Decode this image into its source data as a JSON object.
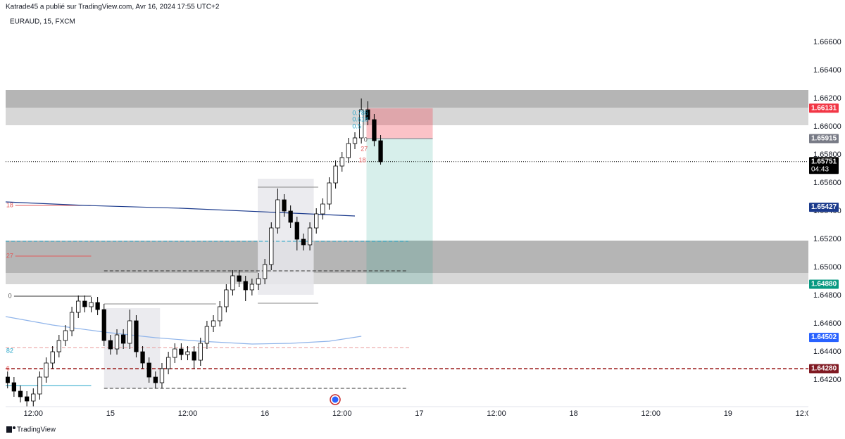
{
  "chart_data": {
    "type": "candlestick",
    "header": "Katrade45 a publié sur TradingView.com, Avr 16, 2024 17:55 UTC+2",
    "title": "EURAUD, 15, FXCM",
    "footer": "TradingView",
    "xlim": [
      7.7,
      132.5
    ],
    "xticks": [
      {
        "value": 12,
        "label": "12:00"
      },
      {
        "value": 24,
        "label": "15"
      },
      {
        "value": 36,
        "label": "12:00"
      },
      {
        "value": 48,
        "label": "16"
      },
      {
        "value": 60,
        "label": "12:00"
      },
      {
        "value": 72,
        "label": "17"
      },
      {
        "value": 84,
        "label": "12:00"
      },
      {
        "value": 96,
        "label": "18"
      },
      {
        "value": 108,
        "label": "12:00"
      },
      {
        "value": 120,
        "label": "19"
      },
      {
        "value": 132,
        "label": "12:00"
      }
    ],
    "ylim": [
      1.6401,
      1.6681
    ],
    "yticks": [
      {
        "value": 1.666,
        "label": "1.66600"
      },
      {
        "value": 1.664,
        "label": "1.66400"
      },
      {
        "value": 1.662,
        "label": "1.66200"
      },
      {
        "value": 1.66,
        "label": "1.66000"
      },
      {
        "value": 1.658,
        "label": "1.65800"
      },
      {
        "value": 1.656,
        "label": "1.65600"
      },
      {
        "value": 1.654,
        "label": "1.65400"
      },
      {
        "value": 1.652,
        "label": "1.65200"
      },
      {
        "value": 1.65,
        "label": "1.65000"
      },
      {
        "value": 1.648,
        "label": "1.64800"
      },
      {
        "value": 1.646,
        "label": "1.64600"
      },
      {
        "value": 1.644,
        "label": "1.64400"
      },
      {
        "value": 1.642,
        "label": "1.64200"
      }
    ],
    "up_color": "#ffffff",
    "down_color": "#000000",
    "x": [
      8,
      9,
      10,
      11,
      12,
      13,
      14,
      15,
      16,
      17,
      18,
      19,
      20,
      21,
      22,
      23,
      24,
      25,
      26,
      27,
      28,
      29,
      30,
      31,
      32,
      33,
      34,
      35,
      36,
      37,
      38,
      39,
      40,
      41,
      42,
      43,
      44,
      45,
      46,
      47,
      48,
      49,
      50,
      51,
      52,
      53,
      54,
      55,
      56,
      57,
      58,
      59,
      60,
      61,
      62,
      63,
      64,
      65,
      66
    ],
    "open": [
      1.6422,
      1.6418,
      1.6412,
      1.6408,
      1.6405,
      1.641,
      1.6422,
      1.6432,
      1.644,
      1.6448,
      1.6455,
      1.6468,
      1.6476,
      1.6472,
      1.6475,
      1.647,
      1.6448,
      1.6442,
      1.6452,
      1.6446,
      1.6462,
      1.644,
      1.6432,
      1.6422,
      1.6418,
      1.6428,
      1.6436,
      1.6442,
      1.6438,
      1.644,
      1.6434,
      1.6446,
      1.6458,
      1.6462,
      1.6472,
      1.6484,
      1.6494,
      1.649,
      1.6484,
      1.6488,
      1.6492,
      1.6502,
      1.6528,
      1.6548,
      1.654,
      1.6532,
      1.652,
      1.6516,
      1.6528,
      1.6538,
      1.6545,
      1.656,
      1.6572,
      1.6578,
      1.6588,
      1.6592,
      1.6612,
      1.6605,
      1.659
    ],
    "high": [
      1.6426,
      1.6422,
      1.6416,
      1.6412,
      1.6414,
      1.6426,
      1.6436,
      1.6444,
      1.6452,
      1.6459,
      1.6472,
      1.648,
      1.648,
      1.6479,
      1.6479,
      1.6474,
      1.6452,
      1.6456,
      1.6456,
      1.647,
      1.6466,
      1.6444,
      1.6436,
      1.6426,
      1.6432,
      1.644,
      1.6446,
      1.6446,
      1.6444,
      1.6444,
      1.645,
      1.6462,
      1.6466,
      1.6476,
      1.6488,
      1.6498,
      1.6498,
      1.6494,
      1.6492,
      1.6496,
      1.6506,
      1.6532,
      1.6556,
      1.6552,
      1.6544,
      1.6536,
      1.6524,
      1.6532,
      1.6542,
      1.6549,
      1.6564,
      1.6576,
      1.6582,
      1.6592,
      1.6596,
      1.662,
      1.6618,
      1.6609,
      1.6594
    ],
    "low": [
      1.6414,
      1.6408,
      1.6404,
      1.6401,
      1.6401,
      1.6406,
      1.6418,
      1.6428,
      1.6436,
      1.6444,
      1.6451,
      1.6464,
      1.6468,
      1.6468,
      1.6466,
      1.6444,
      1.6438,
      1.6438,
      1.6442,
      1.6442,
      1.6436,
      1.6428,
      1.6418,
      1.6414,
      1.6414,
      1.6424,
      1.6432,
      1.6434,
      1.6434,
      1.6428,
      1.643,
      1.6442,
      1.6454,
      1.6458,
      1.6468,
      1.648,
      1.6486,
      1.6476,
      1.648,
      1.6484,
      1.6488,
      1.6498,
      1.6524,
      1.6536,
      1.6528,
      1.6512,
      1.6512,
      1.6512,
      1.6524,
      1.6534,
      1.6541,
      1.6556,
      1.6568,
      1.6574,
      1.6584,
      1.6588,
      1.6601,
      1.6586,
      1.6573
    ],
    "close": [
      1.6418,
      1.6412,
      1.6408,
      1.6405,
      1.641,
      1.6422,
      1.6432,
      1.644,
      1.6448,
      1.6455,
      1.6468,
      1.6476,
      1.6472,
      1.6475,
      1.647,
      1.6448,
      1.6442,
      1.6452,
      1.6446,
      1.6462,
      1.644,
      1.6432,
      1.6422,
      1.6418,
      1.6428,
      1.6436,
      1.6442,
      1.6438,
      1.644,
      1.6434,
      1.6446,
      1.6458,
      1.6462,
      1.6472,
      1.6484,
      1.6494,
      1.649,
      1.6484,
      1.6488,
      1.6492,
      1.6502,
      1.6528,
      1.6548,
      1.654,
      1.6532,
      1.652,
      1.6516,
      1.6528,
      1.6538,
      1.6545,
      1.656,
      1.6572,
      1.6578,
      1.6588,
      1.6592,
      1.6612,
      1.6605,
      1.659,
      1.6575
    ],
    "zones": [
      {
        "top": 1.6626,
        "bottom": 1.66135,
        "color": "#b5b5b5"
      },
      {
        "top": 1.66135,
        "bottom": 1.6601,
        "color": "#d7d7d7"
      },
      {
        "top": 1.6519,
        "bottom": 1.6496,
        "color": "#b5b5b5"
      },
      {
        "top": 1.6496,
        "bottom": 1.6488,
        "color": "#d7d7d7"
      }
    ],
    "boxes": [
      {
        "x_start": 23,
        "x_end": 31.7,
        "top": 1.6471,
        "bottom": 1.6414,
        "color": "#e8e8ec"
      },
      {
        "x_start": 46.9,
        "x_end": 55.6,
        "top": 1.6563,
        "bottom": 1.64805,
        "color": "#e8e8ec"
      }
    ],
    "position": {
      "entry": 1.65915,
      "stop": 1.66131,
      "target": 1.6488,
      "x_start": 63.8,
      "x_end": 74.1
    },
    "levels": [
      {
        "price": 1.6428,
        "x_start": 7.7,
        "x_end": 132.5,
        "color": "#9b1c1c",
        "style": "dashed"
      },
      {
        "price": 1.6443,
        "x_start": 7.7,
        "x_end": 70.6,
        "color": "#e89a9a",
        "style": "dashed"
      },
      {
        "price": 1.64975,
        "x_start": 23,
        "x_end": 70.3,
        "color": "#333333",
        "style": "dashed"
      },
      {
        "price": 1.6414,
        "x_start": 23,
        "x_end": 70.3,
        "color": "#333333",
        "style": "dashed"
      },
      {
        "price": 1.65185,
        "x_start": 7.7,
        "x_end": 70.3,
        "color": "#26a6c9",
        "style": "dashed"
      },
      {
        "price": 1.65751,
        "x_start": 7.7,
        "x_end": 132.5,
        "color": "#000000",
        "style": "dotted"
      },
      {
        "price": 1.6544,
        "x_start": 9.2,
        "x_end": 21,
        "color": "#e35a5a",
        "style": "solid"
      },
      {
        "price": 1.6508,
        "x_start": 9.2,
        "x_end": 21,
        "color": "#e35a5a",
        "style": "solid"
      },
      {
        "price": 1.64795,
        "x_start": 9,
        "x_end": 21,
        "color": "#333333",
        "style": "solid"
      },
      {
        "price": 1.6416,
        "x_start": 7.7,
        "x_end": 21,
        "color": "#26a6c9",
        "style": "solid"
      },
      {
        "price": 1.6474,
        "x_start": 23,
        "x_end": 40.4,
        "color": "#888888",
        "style": "solid"
      },
      {
        "price": 1.6557,
        "x_start": 46.9,
        "x_end": 56.3,
        "color": "#888888",
        "style": "solid"
      },
      {
        "price": 1.64745,
        "x_start": 46.9,
        "x_end": 56.3,
        "color": "#888888",
        "style": "solid"
      }
    ],
    "ma_lines": [
      {
        "color": "#1b3a8c",
        "x": [
          7.7,
          20,
          35,
          50,
          62
        ],
        "values": [
          1.65465,
          1.6544,
          1.6542,
          1.6539,
          1.65365
        ]
      },
      {
        "color": "#8fb4ea",
        "x": [
          7.7,
          15,
          23,
          31,
          38,
          46,
          52,
          58,
          63
        ],
        "values": [
          1.6465,
          1.6459,
          1.6454,
          1.645,
          1.64475,
          1.64455,
          1.6446,
          1.64475,
          1.6451
        ]
      }
    ],
    "fib_labels": [
      {
        "text": "0.786",
        "price": 1.66095,
        "x": 61.6,
        "color": "#26a6c9"
      },
      {
        "text": "0.618",
        "price": 1.6605,
        "x": 61.6,
        "color": "#26a6c9"
      },
      {
        "text": "0.5",
        "price": 1.66,
        "x": 61.6,
        "color": "#26a6c9"
      },
      {
        "text": "0",
        "price": 1.65905,
        "x": 63.4,
        "color": "#555555"
      },
      {
        "text": "27",
        "price": 1.6584,
        "x": 62.9,
        "color": "#e35a5a"
      },
      {
        "text": "18",
        "price": 1.6576,
        "x": 62.6,
        "color": "#e35a5a"
      },
      {
        "text": "18",
        "price": 1.6544,
        "x": 7.8,
        "color": "#e35a5a"
      },
      {
        "text": "27",
        "price": 1.6508,
        "x": 7.8,
        "color": "#e35a5a"
      },
      {
        "text": "0",
        "price": 1.64795,
        "x": 8.1,
        "color": "#555555"
      },
      {
        "text": "82",
        "price": 1.64405,
        "x": 7.8,
        "color": "#26a6c9"
      },
      {
        "text": "6",
        "price": 1.6428,
        "x": 7.8,
        "color": "#e35a5a"
      }
    ],
    "price_labels": [
      {
        "value": 1.66131,
        "label": "1.66131",
        "color": "#f23645"
      },
      {
        "value": 1.65915,
        "label": "1.65915",
        "color": "#787b86"
      },
      {
        "value": 1.65751,
        "label": "1.65751",
        "color": "#000000",
        "sub": "04:43"
      },
      {
        "value": 1.65427,
        "label": "1.65427",
        "color": "#1b3a8c"
      },
      {
        "value": 1.6488,
        "label": "1.64880",
        "color": "#089981"
      },
      {
        "value": 1.64502,
        "label": "1.64502",
        "color": "#2962ff"
      },
      {
        "value": 1.6428,
        "label": "1.64280",
        "color": "#801922"
      }
    ]
  }
}
